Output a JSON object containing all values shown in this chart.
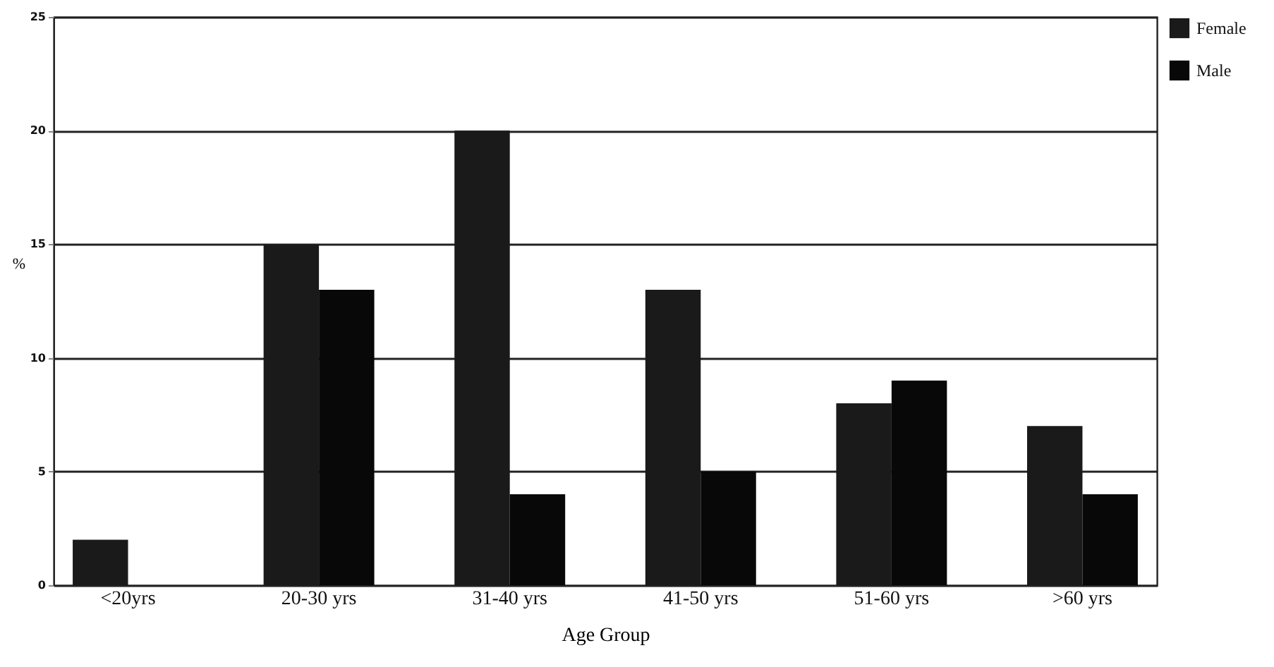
{
  "chart_data": {
    "type": "bar",
    "xlabel": "Age Group",
    "ylabel": "%",
    "categories": [
      "<20yrs",
      "20-30 yrs",
      "31-40 yrs",
      "41-50 yrs",
      "51-60 yrs",
      ">60 yrs"
    ],
    "series": [
      {
        "name": "Female",
        "color": "#1a1a1a",
        "values": [
          2,
          15,
          20,
          13,
          8,
          7
        ]
      },
      {
        "name": "Male",
        "color": "#080808",
        "values": [
          null,
          13,
          4,
          5,
          9,
          4
        ]
      }
    ],
    "ylim": [
      0,
      25
    ],
    "yticks": [
      0,
      5,
      10,
      15,
      20,
      25
    ],
    "grid": "y",
    "legend": "right"
  }
}
